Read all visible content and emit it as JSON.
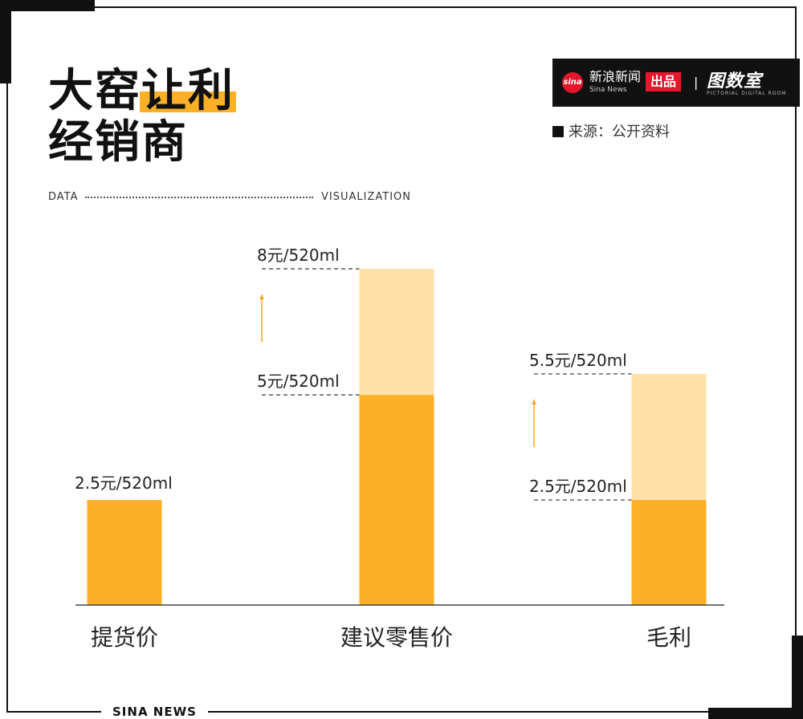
{
  "header": {
    "title_line1_plain": "大窑",
    "title_line1_highlight": "让利",
    "title_line2": "经销商",
    "tag_left": "DATA",
    "tag_right": "VISUALIZATION"
  },
  "brand": {
    "logo_text": "sina",
    "name": "新浪新闻",
    "sub": "Sina News",
    "produced": "出品",
    "separator": "|",
    "room": "图数室",
    "room_sub": "PICTORIAL DIGITAL ROOM"
  },
  "source": "来源：公开资料",
  "footer": "SINA NEWS",
  "colors": {
    "bar_dark": "#FBB028",
    "bar_light": "#FFE1A9",
    "arrow": "#F5A623",
    "axis": "#444444"
  },
  "chart_data": {
    "type": "bar",
    "categories": [
      "提货价",
      "建议零售价",
      "毛利"
    ],
    "unit": "元/520ml",
    "ylim": [
      0,
      8
    ],
    "bars": [
      {
        "base": 2.5,
        "top": null,
        "labels": [
          "2.5元/520ml"
        ]
      },
      {
        "base": 5,
        "top": 8,
        "labels": [
          "5元/520ml",
          "8元/520ml"
        ]
      },
      {
        "base": 2.5,
        "top": 5.5,
        "labels": [
          "2.5元/520ml",
          "5.5元/520ml"
        ]
      }
    ],
    "grid": false,
    "legend": "none"
  }
}
